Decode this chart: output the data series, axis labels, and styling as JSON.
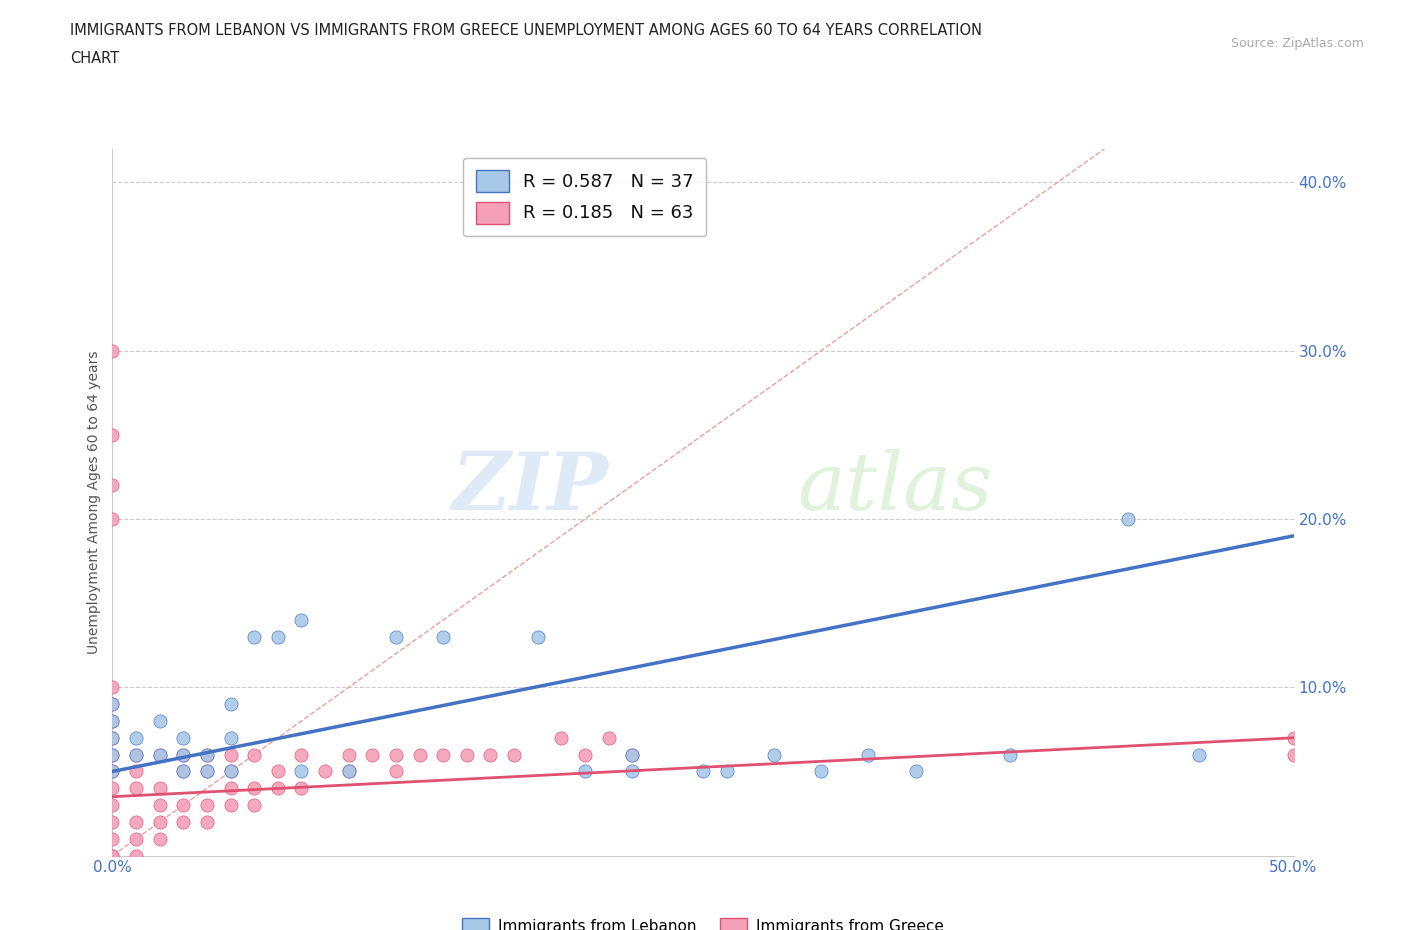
{
  "title_line1": "IMMIGRANTS FROM LEBANON VS IMMIGRANTS FROM GREECE UNEMPLOYMENT AMONG AGES 60 TO 64 YEARS CORRELATION",
  "title_line2": "CHART",
  "source": "Source: ZipAtlas.com",
  "ylabel": "Unemployment Among Ages 60 to 64 years",
  "xlim": [
    0.0,
    0.5
  ],
  "ylim": [
    0.0,
    0.42
  ],
  "color_lebanon": "#a8c8e8",
  "color_greece": "#f4a0b8",
  "trendline_color_lebanon": "#4472c4",
  "trendline_color_greece": "#e05070",
  "diagonal_color": "#e8b0b0",
  "grid_color": "#cccccc",
  "tick_color": "#4472c4",
  "ylabel_color": "#555555",
  "lebanon_x": [
    0.0,
    0.0,
    0.0,
    0.0,
    0.0,
    0.01,
    0.01,
    0.02,
    0.02,
    0.03,
    0.03,
    0.03,
    0.04,
    0.04,
    0.05,
    0.05,
    0.05,
    0.06,
    0.07,
    0.08,
    0.08,
    0.1,
    0.12,
    0.14,
    0.18,
    0.2,
    0.22,
    0.22,
    0.25,
    0.26,
    0.28,
    0.3,
    0.32,
    0.34,
    0.38,
    0.43,
    0.46
  ],
  "lebanon_y": [
    0.05,
    0.06,
    0.07,
    0.08,
    0.09,
    0.06,
    0.07,
    0.06,
    0.08,
    0.05,
    0.06,
    0.07,
    0.05,
    0.06,
    0.05,
    0.07,
    0.09,
    0.13,
    0.13,
    0.05,
    0.14,
    0.05,
    0.13,
    0.13,
    0.13,
    0.05,
    0.05,
    0.06,
    0.05,
    0.05,
    0.06,
    0.05,
    0.06,
    0.05,
    0.06,
    0.2,
    0.06
  ],
  "greece_x": [
    0.0,
    0.0,
    0.0,
    0.0,
    0.0,
    0.0,
    0.0,
    0.0,
    0.0,
    0.0,
    0.0,
    0.0,
    0.0,
    0.0,
    0.0,
    0.0,
    0.01,
    0.01,
    0.01,
    0.01,
    0.01,
    0.01,
    0.02,
    0.02,
    0.02,
    0.02,
    0.02,
    0.03,
    0.03,
    0.03,
    0.03,
    0.04,
    0.04,
    0.04,
    0.04,
    0.05,
    0.05,
    0.05,
    0.05,
    0.06,
    0.06,
    0.06,
    0.07,
    0.07,
    0.08,
    0.08,
    0.09,
    0.1,
    0.1,
    0.11,
    0.12,
    0.12,
    0.13,
    0.14,
    0.15,
    0.16,
    0.17,
    0.19,
    0.2,
    0.21,
    0.22,
    0.5,
    0.5
  ],
  "greece_y": [
    0.0,
    0.0,
    0.01,
    0.02,
    0.03,
    0.04,
    0.05,
    0.06,
    0.07,
    0.08,
    0.09,
    0.1,
    0.3,
    0.25,
    0.22,
    0.2,
    0.0,
    0.01,
    0.02,
    0.04,
    0.05,
    0.06,
    0.01,
    0.02,
    0.03,
    0.04,
    0.06,
    0.02,
    0.03,
    0.05,
    0.06,
    0.02,
    0.03,
    0.05,
    0.06,
    0.03,
    0.04,
    0.05,
    0.06,
    0.03,
    0.04,
    0.06,
    0.04,
    0.05,
    0.04,
    0.06,
    0.05,
    0.05,
    0.06,
    0.06,
    0.05,
    0.06,
    0.06,
    0.06,
    0.06,
    0.06,
    0.06,
    0.07,
    0.06,
    0.07,
    0.06,
    0.06,
    0.07
  ],
  "leb_trend_x": [
    0.0,
    0.5
  ],
  "leb_trend_y": [
    0.05,
    0.19
  ],
  "gre_trend_x": [
    0.0,
    0.5
  ],
  "gre_trend_y": [
    0.035,
    0.07
  ]
}
